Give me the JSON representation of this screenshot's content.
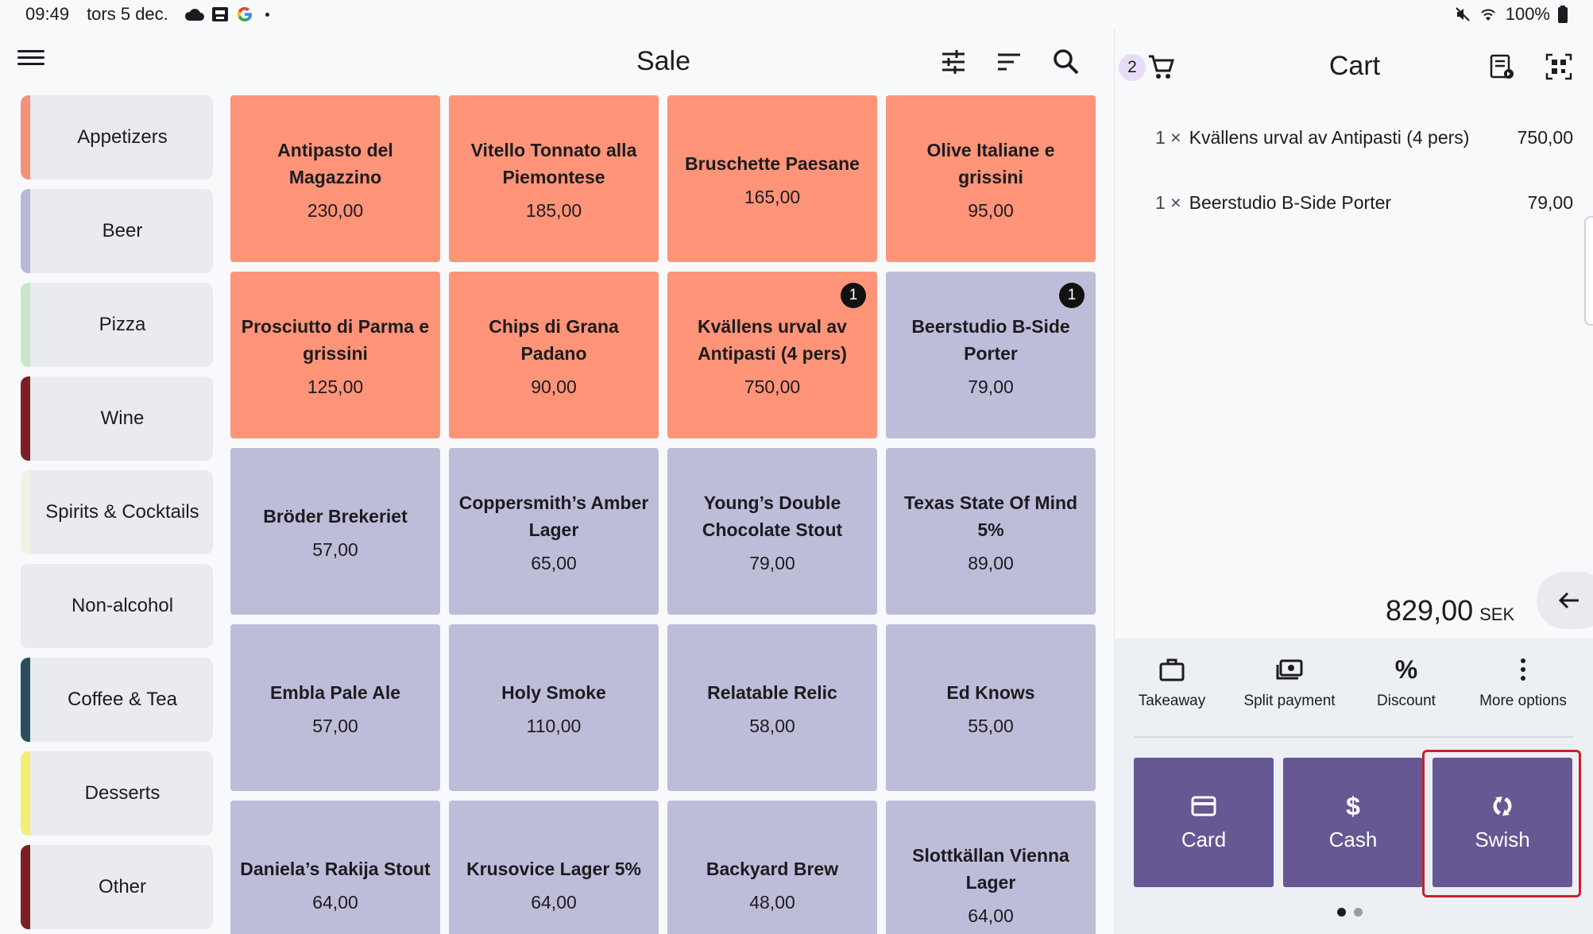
{
  "status_bar": {
    "time": "09:49",
    "date": "tors 5 dec.",
    "battery": "100%"
  },
  "header": {
    "title": "Sale"
  },
  "categories": [
    {
      "label": "Appetizers",
      "color": "#f4917a"
    },
    {
      "label": "Beer",
      "color": "#b8b9d8"
    },
    {
      "label": "Pizza",
      "color": "#c8e6c9"
    },
    {
      "label": "Wine",
      "color": "#7b1f24"
    },
    {
      "label": "Spirits & Cocktails",
      "color": "#f3f1e4"
    },
    {
      "label": "Non-alcohol",
      "color": "#e9ebf0"
    },
    {
      "label": "Coffee & Tea",
      "color": "#2a4e5c"
    },
    {
      "label": "Desserts",
      "color": "#f5ee71"
    },
    {
      "label": "Other",
      "color": "#7b1f24"
    }
  ],
  "products": [
    {
      "name": "Antipasto del Magazzino",
      "price": "230,00",
      "color": "#ff9478",
      "badge": ""
    },
    {
      "name": "Vitello Tonnato alla Piemontese",
      "price": "185,00",
      "color": "#ff9478",
      "badge": ""
    },
    {
      "name": "Bruschette Paesane",
      "price": "165,00",
      "color": "#ff9478",
      "badge": ""
    },
    {
      "name": "Olive Italiane e grissini",
      "price": "95,00",
      "color": "#ff9478",
      "badge": ""
    },
    {
      "name": "Prosciutto di Parma e grissini",
      "price": "125,00",
      "color": "#ff9478",
      "badge": ""
    },
    {
      "name": "Chips di Grana Padano",
      "price": "90,00",
      "color": "#ff9478",
      "badge": ""
    },
    {
      "name": "Kvällens urval av Antipasti (4 pers)",
      "price": "750,00",
      "color": "#ff9478",
      "badge": "1"
    },
    {
      "name": "Beerstudio B-Side Porter",
      "price": "79,00",
      "color": "#bebdd9",
      "badge": "1"
    },
    {
      "name": "Bröder Brekeriet",
      "price": "57,00",
      "color": "#bebdd9",
      "badge": ""
    },
    {
      "name": "Coppersmith’s Amber Lager",
      "price": "65,00",
      "color": "#bebdd9",
      "badge": ""
    },
    {
      "name": "Young’s Double Chocolate Stout",
      "price": "79,00",
      "color": "#bebdd9",
      "badge": ""
    },
    {
      "name": "Texas State Of Mind 5%",
      "price": "89,00",
      "color": "#bebdd9",
      "badge": ""
    },
    {
      "name": "Embla Pale Ale",
      "price": "57,00",
      "color": "#bebdd9",
      "badge": ""
    },
    {
      "name": "Holy Smoke",
      "price": "110,00",
      "color": "#bebdd9",
      "badge": ""
    },
    {
      "name": "Relatable Relic",
      "price": "58,00",
      "color": "#bebdd9",
      "badge": ""
    },
    {
      "name": "Ed Knows",
      "price": "55,00",
      "color": "#bebdd9",
      "badge": ""
    },
    {
      "name": "Daniela’s Rakija Stout",
      "price": "64,00",
      "color": "#bebdd9",
      "badge": ""
    },
    {
      "name": "Krusovice Lager 5%",
      "price": "64,00",
      "color": "#bebdd9",
      "badge": ""
    },
    {
      "name": "Backyard Brew",
      "price": "48,00",
      "color": "#bebdd9",
      "badge": ""
    },
    {
      "name": "Slottkällan Vienna Lager",
      "price": "64,00",
      "color": "#bebdd9",
      "badge": ""
    }
  ],
  "cart": {
    "title": "Cart",
    "count": "2",
    "lines": [
      {
        "qty": "1 ×",
        "name": "Kvällens urval av  Antipasti (4 pers)",
        "amount": "750,00"
      },
      {
        "qty": "1 ×",
        "name": "Beerstudio B-Side Porter",
        "amount": "79,00"
      }
    ],
    "total": "829,00",
    "currency": "SEK"
  },
  "actions": {
    "takeaway": "Takeaway",
    "split_payment": "Split payment",
    "discount": "Discount",
    "discount_symbol": "%",
    "more_options": "More options"
  },
  "payment": {
    "card": "Card",
    "cash": "Cash",
    "cash_symbol": "$",
    "swish": "Swish"
  },
  "colors": {
    "pay_button": "#665893",
    "highlight": "#c6222b"
  }
}
